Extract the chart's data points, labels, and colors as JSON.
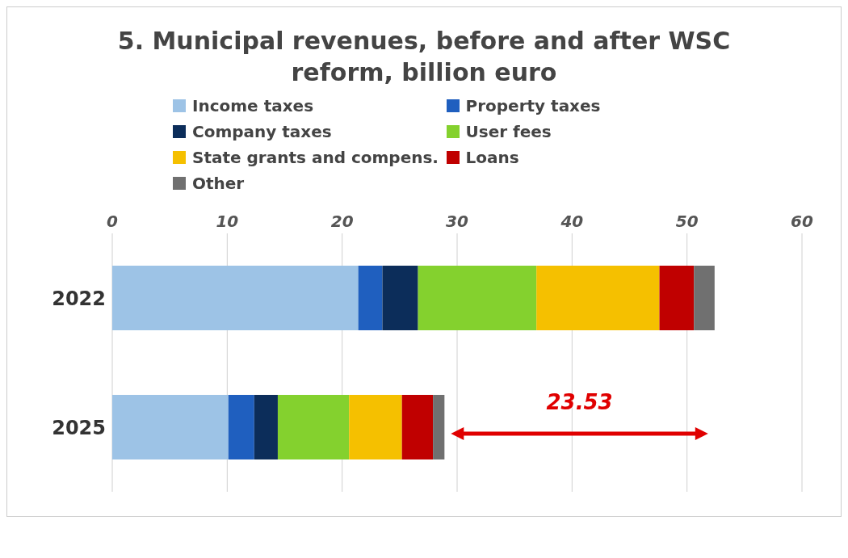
{
  "chart_data": {
    "type": "bar",
    "orientation": "horizontal",
    "stacked": true,
    "title": "5. Municipal revenues, before and after WSC reform, billion euro",
    "categories": [
      "2022",
      "2025"
    ],
    "series": [
      {
        "name": "Income taxes",
        "color": "#9dc3e6",
        "values": [
          21.4,
          10.1
        ]
      },
      {
        "name": "Property taxes",
        "color": "#1f5fbf",
        "values": [
          2.1,
          2.25
        ]
      },
      {
        "name": "Company taxes",
        "color": "#0c2d5a",
        "values": [
          3.1,
          2.05
        ]
      },
      {
        "name": "User fees",
        "color": "#84d12e",
        "values": [
          10.3,
          6.2
        ]
      },
      {
        "name": "State grants and compens.",
        "color": "#f5c000",
        "values": [
          10.7,
          4.6
        ]
      },
      {
        "name": "Loans",
        "color": "#c00000",
        "values": [
          3.0,
          2.7
        ]
      },
      {
        "name": "Other",
        "color": "#707070",
        "values": [
          1.8,
          1.0
        ]
      }
    ],
    "xlim": [
      0,
      60
    ],
    "xticks": [
      0,
      10,
      20,
      30,
      40,
      50,
      60
    ],
    "grid": "x",
    "legend": "top",
    "annotations": [
      "23.53"
    ]
  }
}
